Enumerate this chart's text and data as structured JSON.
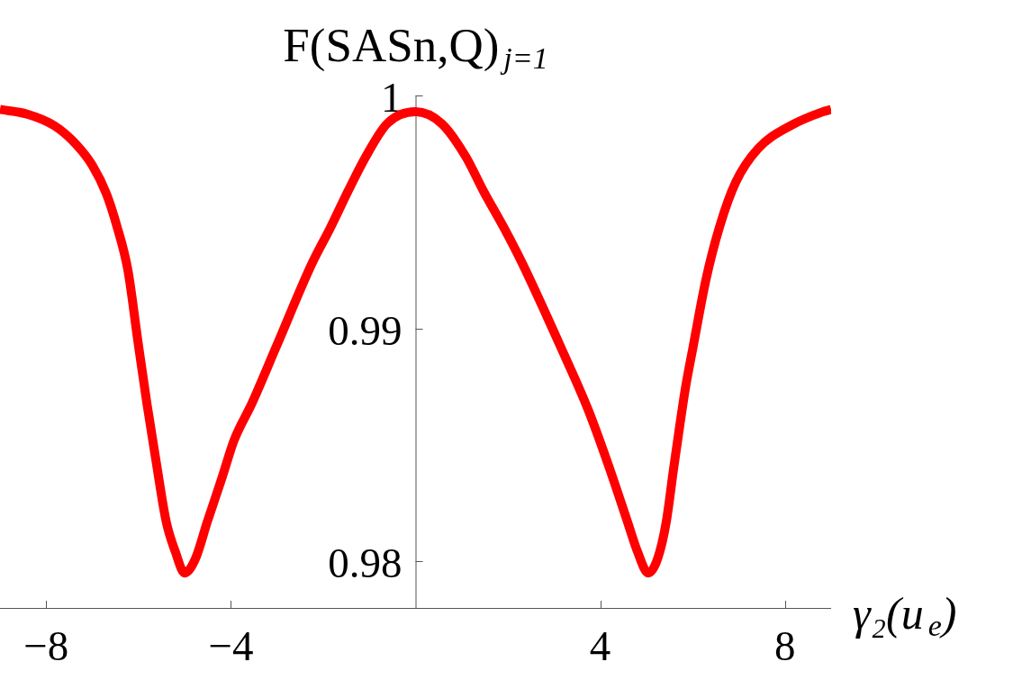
{
  "chart_data": {
    "type": "line",
    "xlabel": "γ₂(u$_{e}$)",
    "ylabel": "F(SASn,Q)$_{j=1}$",
    "x": [
      -9,
      -8.41,
      -7.82,
      -7.35,
      -7.0,
      -6.7,
      -6.47,
      -6.23,
      -6.01,
      -5.82,
      -5.62,
      -5.4,
      -5.2,
      -5.0,
      -4.77,
      -4.51,
      -4.19,
      -3.93,
      -3.54,
      -3.02,
      -2.24,
      -1.85,
      -1.46,
      -1.07,
      -0.61,
      0,
      0.56,
      1.08,
      1.47,
      1.92,
      2.31,
      3.19,
      3.74,
      4.2,
      4.59,
      4.81,
      5.04,
      5.24,
      5.43,
      5.59,
      5.72,
      5.85,
      6.01,
      6.29,
      6.59,
      6.94,
      7.41,
      8.12,
      8.82,
      9
    ],
    "series": [
      {
        "color": "#ff0000",
        "values": [
          0.9994,
          0.9992,
          0.9987,
          0.9979,
          0.997,
          0.9958,
          0.9944,
          0.9925,
          0.9894,
          0.9868,
          0.9843,
          0.9817,
          0.9804,
          0.9795,
          0.9801,
          0.9817,
          0.9836,
          0.9852,
          0.9868,
          0.9892,
          0.9928,
          0.9943,
          0.9959,
          0.9974,
          0.9988,
          0.9993,
          0.9988,
          0.9974,
          0.9959,
          0.9943,
          0.9928,
          0.989,
          0.9865,
          0.984,
          0.9817,
          0.9804,
          0.9795,
          0.9801,
          0.9817,
          0.984,
          0.9858,
          0.9875,
          0.9892,
          0.9921,
          0.9944,
          0.9963,
          0.9977,
          0.9987,
          0.9993,
          0.9994
        ]
      }
    ],
    "xlim": [
      -9,
      9
    ],
    "ylim": [
      0.978,
      1
    ],
    "xticks": [
      {
        "value": -8,
        "label": "−8"
      },
      {
        "value": -4,
        "label": "−4"
      },
      4,
      8
    ],
    "yticks": [
      0.98,
      0.99,
      1
    ]
  }
}
